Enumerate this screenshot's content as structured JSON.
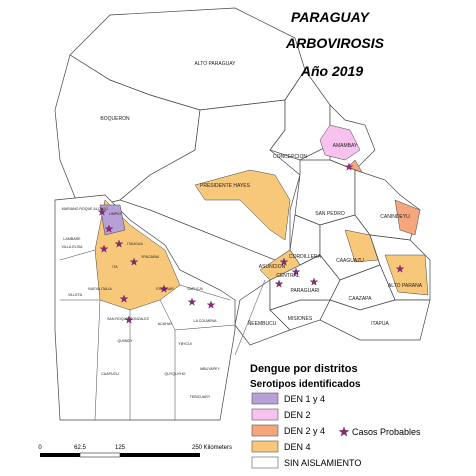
{
  "header": {
    "title": "PARAGUAY",
    "subtitle": "ARBOVIROSIS",
    "year": "Año 2019"
  },
  "departments": [
    "ALTO PARAGUAY",
    "BOQUERON",
    "PRESIDENTE HAYES",
    "CONCEPCION",
    "AMAMBAY",
    "SAN PEDRO",
    "CANINDEYU",
    "CORDILLERA",
    "CAAGUAZU",
    "ALTO PARANA",
    "CAAZAPA",
    "ITAPUA",
    "MISIONES",
    "ÑEEMBUCU",
    "PARAGUARI",
    "ASUNCION",
    "CENTRAL"
  ],
  "inset_districts": [
    "MARIANO ROQUE ALONSO",
    "LIMPIO",
    "LAMBARE",
    "VILLA ELISA",
    "ITA",
    "ITAUGUA",
    "YPACARAI",
    "VILLETA",
    "NUEVA ITALIA",
    "ESCOBAR",
    "SAPUCAI",
    "ACAHAY",
    "YBYCUI",
    "QUIINDY",
    "CAAPUCU",
    "QUYQUYHO",
    "MBUYAPEY",
    "TEBICUARY",
    "LA COLMENA",
    "SAN ROQUE GONZALEZ"
  ],
  "legend": {
    "title": "Dengue por distritos",
    "subtitle": "Serotipos identificados",
    "items": [
      {
        "label": "DEN 1 y 4",
        "color": "#b7a0d6"
      },
      {
        "label": "DEN 2",
        "color": "#f7c2ee"
      },
      {
        "label": "DEN 2 y 4",
        "color": "#f6a57c"
      },
      {
        "label": "DEN 4",
        "color": "#f7c77a"
      },
      {
        "label": "SIN AISLAMIENTO",
        "color": "#ffffff"
      }
    ],
    "marker": "Casos Probables"
  },
  "scale": {
    "labels": [
      "0",
      "62.5",
      "125",
      "250 Kilometers"
    ]
  }
}
